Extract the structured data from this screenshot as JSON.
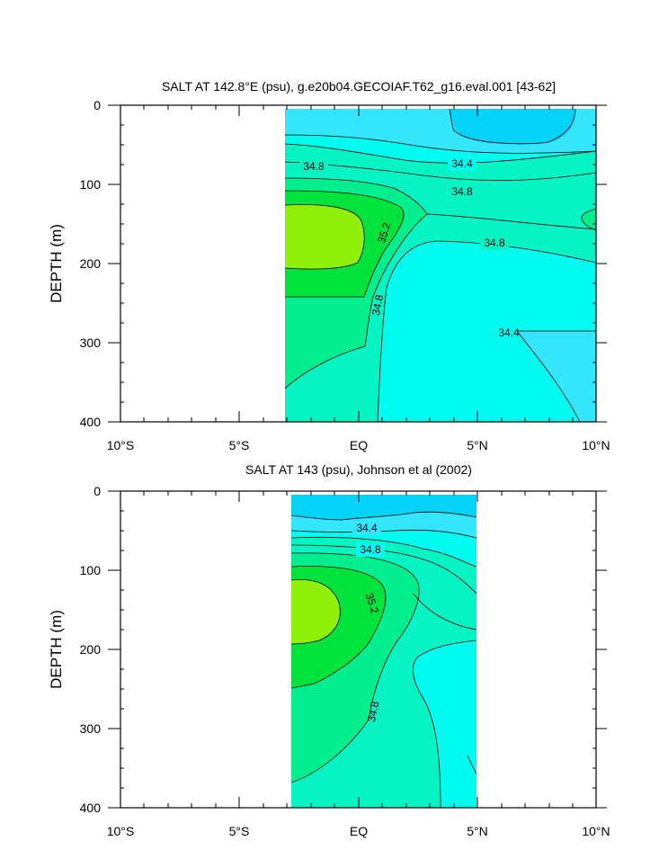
{
  "chart_data": [
    {
      "type": "contour",
      "title": "SALT AT 142.8°E (psu), g.e20b04.GECOIAF.T62_g16.eval.001 [43-62]",
      "ylabel": "DEPTH (m)",
      "xlim": [
        -10,
        10
      ],
      "ylim": [
        400,
        0
      ],
      "data_extent_lat": [
        -3,
        10
      ],
      "x_ticks": [
        {
          "value": -10,
          "label": "10°S"
        },
        {
          "value": -5,
          "label": "5°S"
        },
        {
          "value": 0,
          "label": "EQ"
        },
        {
          "value": 5,
          "label": "5°N"
        },
        {
          "value": 10,
          "label": "10°N"
        }
      ],
      "y_ticks": [
        0,
        100,
        200,
        300,
        400
      ],
      "contour_labels": [
        {
          "text": "34.8",
          "lat": -2.2,
          "depth": 77
        },
        {
          "text": "34.4",
          "lat": 4.4,
          "depth": 75
        },
        {
          "text": "34.8",
          "lat": 4.4,
          "depth": 108
        },
        {
          "text": "35.2",
          "lat": 0.3,
          "depth": 160
        },
        {
          "text": "34.8",
          "lat": 5.9,
          "depth": 178
        },
        {
          "text": "34.8",
          "lat": 0.8,
          "depth": 255
        },
        {
          "text": "34.4",
          "lat": 6.3,
          "depth": 285
        }
      ]
    },
    {
      "type": "contour",
      "title": "SALT AT 143 (psu), Johnson et al (2002)",
      "ylabel": "DEPTH (m)",
      "xlim": [
        -10,
        10
      ],
      "ylim": [
        400,
        0
      ],
      "data_extent_lat": [
        -2.8,
        5
      ],
      "x_ticks": [
        {
          "value": -10,
          "label": "10°S"
        },
        {
          "value": -5,
          "label": "5°S"
        },
        {
          "value": 0,
          "label": "EQ"
        },
        {
          "value": 5,
          "label": "5°N"
        },
        {
          "value": 10,
          "label": "10°N"
        }
      ],
      "y_ticks": [
        0,
        100,
        200,
        300,
        400
      ],
      "contour_labels": [
        {
          "text": "34.4",
          "lat": 0.3,
          "depth": 47
        },
        {
          "text": "34.8",
          "lat": 0.4,
          "depth": 75
        },
        {
          "text": "35.2",
          "lat": 0.3,
          "depth": 145
        },
        {
          "text": "34.8",
          "lat": 0.8,
          "depth": 277
        }
      ]
    }
  ],
  "fill_colors": {
    "level_34_2": "#05d2f7",
    "level_34_4": "#33e6fb",
    "level_34_6": "#00fbf0",
    "level_34_8": "#06f4c4",
    "level_35_0": "#00ee8e",
    "level_35_2": "#00e33c",
    "level_35_4": "#8ff00a"
  }
}
